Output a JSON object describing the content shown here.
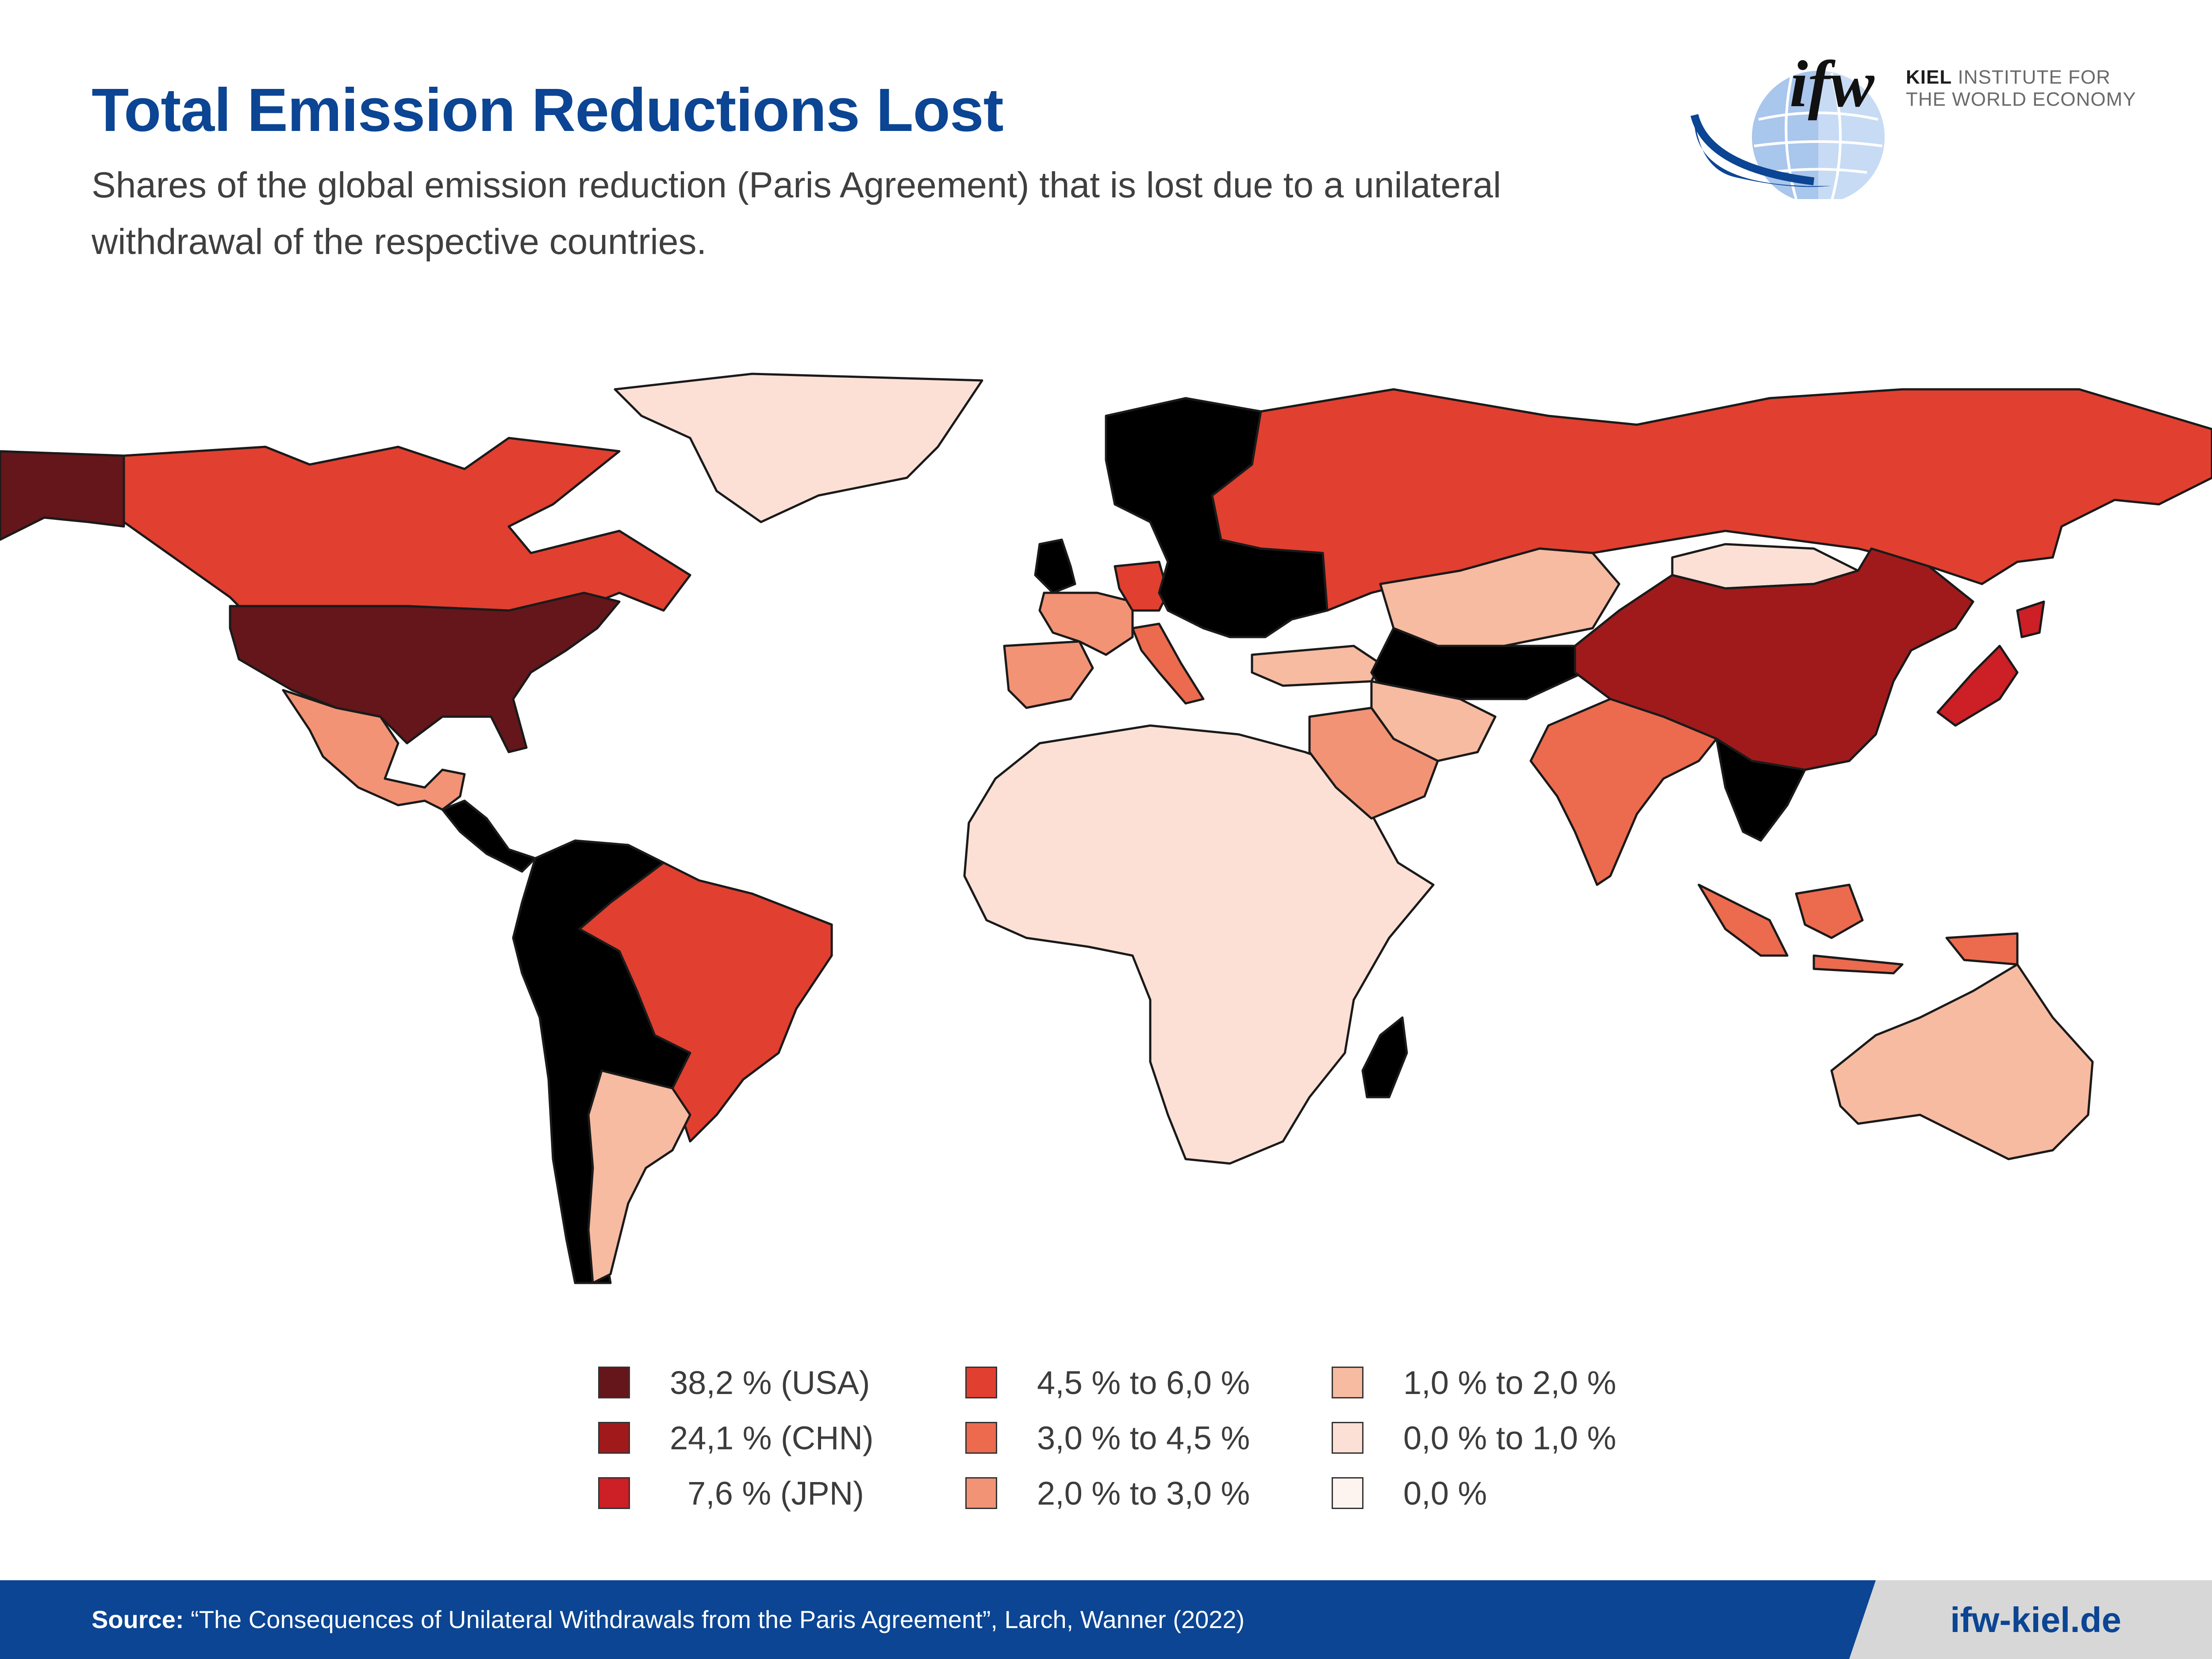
{
  "header": {
    "title": "Total Emission Reductions Lost",
    "subtitle": "Shares of the global emission reduction (Paris Agreement) that is lost due to a unilateral withdrawal of the respective countries."
  },
  "logo": {
    "mark": "ifw",
    "line1_bold": "KIEL",
    "line1_rest": "INSTITUTE FOR",
    "line2": "THE WORLD ECONOMY"
  },
  "colors": {
    "brand_blue": "#0b4593",
    "usa": "#64161a",
    "chn": "#a01a1c",
    "jpn": "#cc1f26",
    "c_4_5_6": "#e13f30",
    "c_3_4_5": "#ec6a4e",
    "c_2_3": "#f29375",
    "c_1_2": "#f6bba1",
    "c_0_1": "#fce0d5",
    "c_0": "#fef4ef"
  },
  "legend": [
    {
      "label": "38,2 % (USA)",
      "color": "#64161a"
    },
    {
      "label": "24,1 % (CHN)",
      "color": "#a01a1c"
    },
    {
      "label": "7,6 % (JPN)",
      "color": "#cc1f26"
    },
    {
      "label": "4,5 % to 6,0 %",
      "color": "#e13f30"
    },
    {
      "label": "3,0 % to 4,5 %",
      "color": "#ec6a4e"
    },
    {
      "label": "2,0 % to 3,0 %",
      "color": "#f29375"
    },
    {
      "label": "1,0 % to 2,0 %",
      "color": "#f6bba1"
    },
    {
      "label": "0,0 % to 1,0 %",
      "color": "#fce0d5"
    },
    {
      "label": "0,0 %",
      "color": "#fef4ef"
    }
  ],
  "map": {
    "regions": [
      {
        "name": "USA",
        "category": "38,2 % (USA)"
      },
      {
        "name": "Alaska",
        "category": "38,2 % (USA)"
      },
      {
        "name": "China",
        "category": "24,1 % (CHN)"
      },
      {
        "name": "Japan",
        "category": "7,6 % (JPN)"
      },
      {
        "name": "Canada",
        "category": "4,5 % to 6,0 %"
      },
      {
        "name": "Russia",
        "category": "4,5 % to 6,0 %"
      },
      {
        "name": "Brazil",
        "category": "4,5 % to 6,0 %"
      },
      {
        "name": "Germany",
        "category": "4,5 % to 6,0 %"
      },
      {
        "name": "United Kingdom",
        "category": "4,5 % to 6,0 %"
      },
      {
        "name": "India",
        "category": "3,0 % to 4,5 %"
      },
      {
        "name": "Indonesia",
        "category": "3,0 % to 4,5 %"
      },
      {
        "name": "Italy",
        "category": "3,0 % to 4,5 %"
      },
      {
        "name": "France",
        "category": "2,0 % to 3,0 %"
      },
      {
        "name": "Spain",
        "category": "2,0 % to 3,0 %"
      },
      {
        "name": "Mexico",
        "category": "2,0 % to 3,0 %"
      },
      {
        "name": "Saudi Arabia",
        "category": "2,0 % to 3,0 %"
      },
      {
        "name": "Poland",
        "category": "2,0 % to 3,0 %"
      },
      {
        "name": "Australia",
        "category": "1,0 % to 2,0 %"
      },
      {
        "name": "Argentina",
        "category": "1,0 % to 2,0 %"
      },
      {
        "name": "Kazakhstan",
        "category": "1,0 % to 2,0 %"
      },
      {
        "name": "Iran",
        "category": "1,0 % to 2,0 %"
      },
      {
        "name": "Turkey",
        "category": "1,0 % to 2,0 %"
      },
      {
        "name": "Greenland",
        "category": "0,0 % to 1,0 %"
      },
      {
        "name": "Africa",
        "category": "0,0 % to 1,0 %"
      },
      {
        "name": "Rest of South America",
        "category": "0,0 % to 1,0 %"
      },
      {
        "name": "Mongolia",
        "category": "0,0 % to 1,0 %"
      }
    ]
  },
  "footer": {
    "source_label": "Source:",
    "source_text": " “The Consequences of Unilateral Withdrawals from the Paris Agreement”, Larch, Wanner (2022)",
    "site": "ifw-kiel.de"
  }
}
